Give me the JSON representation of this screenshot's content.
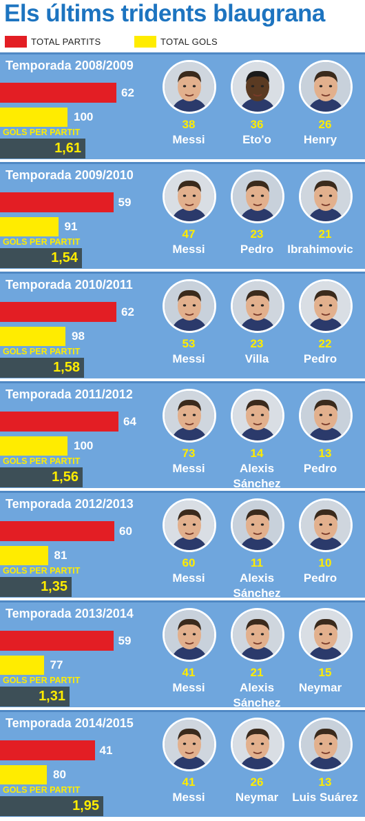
{
  "title": "Els últims tridents blaugrana",
  "legend": [
    {
      "label": "TOTAL PARTITS",
      "color": "#e31e24"
    },
    {
      "label": "TOTAL GOLS",
      "color": "#ffec00"
    }
  ],
  "gpp_label": "GOLS PER PARTIT",
  "chart_data": {
    "type": "bar",
    "title": "Els últims tridents blaugrana",
    "categories": [
      "Temporada 2008/2009",
      "Temporada 2009/2010",
      "Temporada 2010/2011",
      "Temporada 2011/2012",
      "Temporada 2012/2013",
      "Temporada 2013/2014",
      "Temporada 2014/2015"
    ],
    "series": [
      {
        "name": "TOTAL PARTITS",
        "color": "#e31e24",
        "values": [
          62,
          59,
          62,
          64,
          60,
          59,
          41
        ]
      },
      {
        "name": "TOTAL GOLS",
        "color": "#ffec00",
        "values": [
          100,
          91,
          98,
          100,
          81,
          77,
          80
        ]
      }
    ],
    "gols_per_partit": [
      "1,61",
      "1,54",
      "1,58",
      "1,56",
      "1,35",
      "1,31",
      "1,95"
    ],
    "players": [
      [
        {
          "goals": 38,
          "name": "Messi"
        },
        {
          "goals": 36,
          "name": "Eto'o"
        },
        {
          "goals": 26,
          "name": "Henry"
        }
      ],
      [
        {
          "goals": 47,
          "name": "Messi"
        },
        {
          "goals": 23,
          "name": "Pedro"
        },
        {
          "goals": 21,
          "name": "Ibrahimovic"
        }
      ],
      [
        {
          "goals": 53,
          "name": "Messi"
        },
        {
          "goals": 23,
          "name": "Villa"
        },
        {
          "goals": 22,
          "name": "Pedro"
        }
      ],
      [
        {
          "goals": 73,
          "name": "Messi"
        },
        {
          "goals": 14,
          "name": "Alexis Sánchez"
        },
        {
          "goals": 13,
          "name": "Pedro"
        }
      ],
      [
        {
          "goals": 60,
          "name": "Messi"
        },
        {
          "goals": 11,
          "name": "Alexis Sánchez"
        },
        {
          "goals": 10,
          "name": "Pedro"
        }
      ],
      [
        {
          "goals": 41,
          "name": "Messi"
        },
        {
          "goals": 21,
          "name": "Alexis Sánchez"
        },
        {
          "goals": 15,
          "name": "Neymar"
        }
      ],
      [
        {
          "goals": 41,
          "name": "Messi"
        },
        {
          "goals": 26,
          "name": "Neymar"
        },
        {
          "goals": 13,
          "name": "Luis Suárez"
        }
      ]
    ]
  },
  "colors": {
    "panel": "#6fa6dd",
    "title": "#1d74c0",
    "dark_box": "#3d4f57",
    "skin": "#e2b08d",
    "dark_skin": "#5a3a22",
    "hair": "#3a2a1c"
  }
}
